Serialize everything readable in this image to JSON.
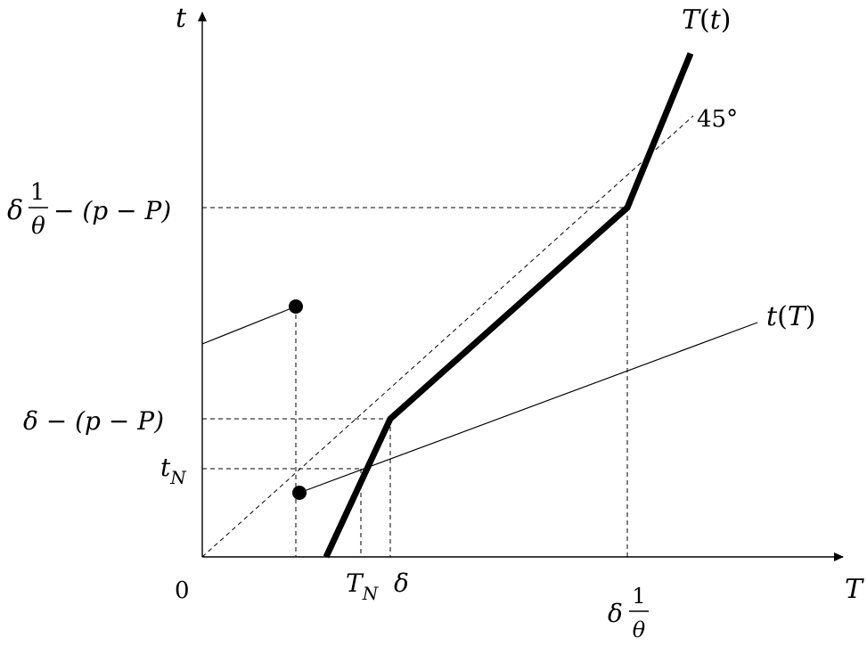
{
  "axes": {
    "x_label": "T",
    "y_label": "t",
    "origin_label": "0"
  },
  "curves": {
    "T_of_t": {
      "name": "T",
      "arg": "t"
    },
    "t_of_T": {
      "name": "t",
      "arg": "T"
    },
    "diagonal": {
      "label": "45°"
    }
  },
  "y_ticks": {
    "upper": {
      "delta": "δ",
      "num": "1",
      "den": "θ",
      "tail": "− (p − P)"
    },
    "middle": {
      "text": "δ − (p − P)"
    },
    "tN": {
      "base": "t",
      "sub": "N"
    }
  },
  "x_ticks": {
    "TN": {
      "base": "T",
      "sub": "N"
    },
    "delta": {
      "text": "δ"
    },
    "delta_theta": {
      "delta": "δ",
      "num": "1",
      "den": "θ"
    }
  },
  "colors": {
    "ink": "#000000",
    "background": "#ffffff"
  }
}
